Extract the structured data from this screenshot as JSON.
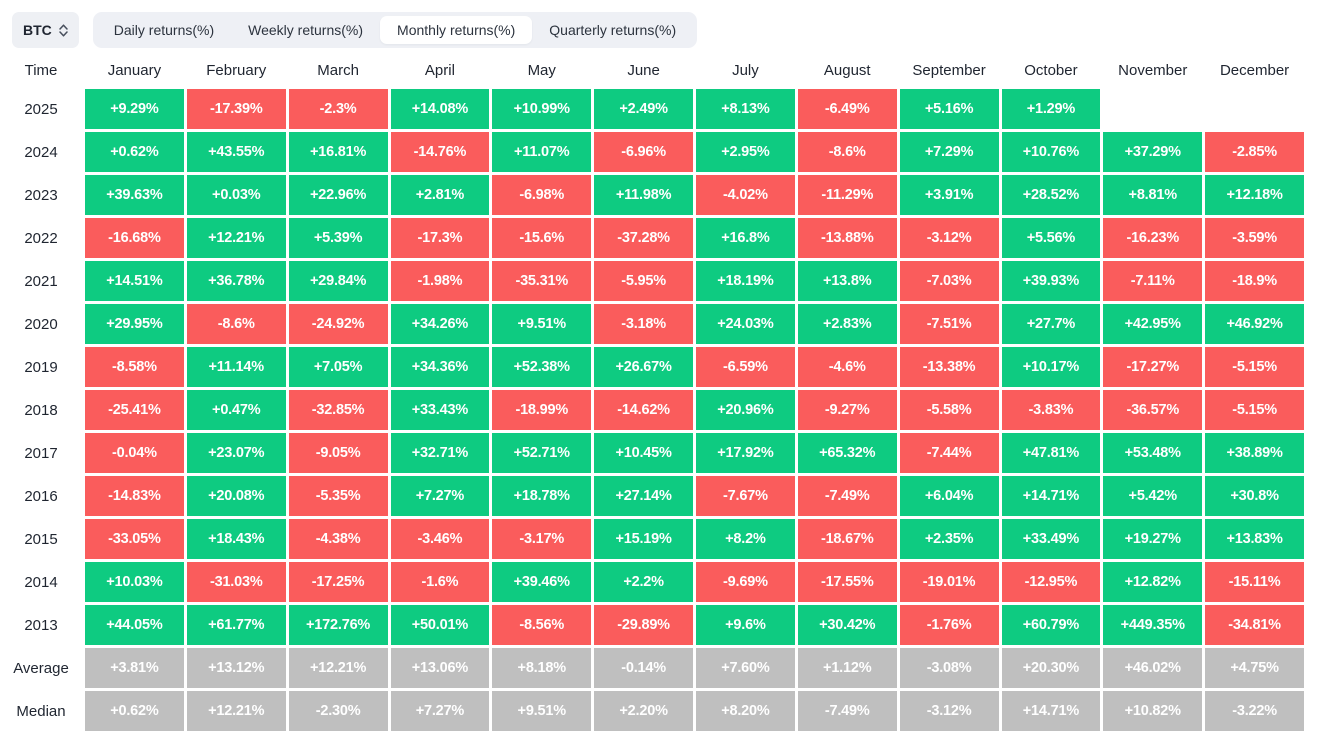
{
  "controls": {
    "symbol": "BTC",
    "symbol_icon": "up-down-chevron-icon",
    "tabs": [
      {
        "label": "Daily returns(%)",
        "selected": false
      },
      {
        "label": "Weekly returns(%)",
        "selected": false
      },
      {
        "label": "Monthly returns(%)",
        "selected": true
      },
      {
        "label": "Quarterly returns(%)",
        "selected": false
      }
    ]
  },
  "colors": {
    "positive": "#0ecb81",
    "negative": "#fa5c5c",
    "summary": "#bfbfbf",
    "tab_bar_bg": "#eef0f5",
    "selected_tab_bg": "#ffffff",
    "header_text": "#1f2530",
    "cell_text": "#ffffff"
  },
  "chart_data": {
    "type": "table",
    "title": "BTC Monthly returns(%)",
    "legend_rule": "green = positive return, red = negative return, gray = Average/Median summary rows, blank = no data yet",
    "columns": [
      "Time",
      "January",
      "February",
      "March",
      "April",
      "May",
      "June",
      "July",
      "August",
      "September",
      "October",
      "November",
      "December"
    ],
    "rows": [
      {
        "label": "2025",
        "summary": false,
        "values": [
          "+9.29%",
          "-17.39%",
          "-2.3%",
          "+14.08%",
          "+10.99%",
          "+2.49%",
          "+8.13%",
          "-6.49%",
          "+5.16%",
          "+1.29%",
          "",
          ""
        ]
      },
      {
        "label": "2024",
        "summary": false,
        "values": [
          "+0.62%",
          "+43.55%",
          "+16.81%",
          "-14.76%",
          "+11.07%",
          "-6.96%",
          "+2.95%",
          "-8.6%",
          "+7.29%",
          "+10.76%",
          "+37.29%",
          "-2.85%"
        ]
      },
      {
        "label": "2023",
        "summary": false,
        "values": [
          "+39.63%",
          "+0.03%",
          "+22.96%",
          "+2.81%",
          "-6.98%",
          "+11.98%",
          "-4.02%",
          "-11.29%",
          "+3.91%",
          "+28.52%",
          "+8.81%",
          "+12.18%"
        ]
      },
      {
        "label": "2022",
        "summary": false,
        "values": [
          "-16.68%",
          "+12.21%",
          "+5.39%",
          "-17.3%",
          "-15.6%",
          "-37.28%",
          "+16.8%",
          "-13.88%",
          "-3.12%",
          "+5.56%",
          "-16.23%",
          "-3.59%"
        ]
      },
      {
        "label": "2021",
        "summary": false,
        "values": [
          "+14.51%",
          "+36.78%",
          "+29.84%",
          "-1.98%",
          "-35.31%",
          "-5.95%",
          "+18.19%",
          "+13.8%",
          "-7.03%",
          "+39.93%",
          "-7.11%",
          "-18.9%"
        ]
      },
      {
        "label": "2020",
        "summary": false,
        "values": [
          "+29.95%",
          "-8.6%",
          "-24.92%",
          "+34.26%",
          "+9.51%",
          "-3.18%",
          "+24.03%",
          "+2.83%",
          "-7.51%",
          "+27.7%",
          "+42.95%",
          "+46.92%"
        ]
      },
      {
        "label": "2019",
        "summary": false,
        "values": [
          "-8.58%",
          "+11.14%",
          "+7.05%",
          "+34.36%",
          "+52.38%",
          "+26.67%",
          "-6.59%",
          "-4.6%",
          "-13.38%",
          "+10.17%",
          "-17.27%",
          "-5.15%"
        ]
      },
      {
        "label": "2018",
        "summary": false,
        "values": [
          "-25.41%",
          "+0.47%",
          "-32.85%",
          "+33.43%",
          "-18.99%",
          "-14.62%",
          "+20.96%",
          "-9.27%",
          "-5.58%",
          "-3.83%",
          "-36.57%",
          "-5.15%"
        ]
      },
      {
        "label": "2017",
        "summary": false,
        "values": [
          "-0.04%",
          "+23.07%",
          "-9.05%",
          "+32.71%",
          "+52.71%",
          "+10.45%",
          "+17.92%",
          "+65.32%",
          "-7.44%",
          "+47.81%",
          "+53.48%",
          "+38.89%"
        ]
      },
      {
        "label": "2016",
        "summary": false,
        "values": [
          "-14.83%",
          "+20.08%",
          "-5.35%",
          "+7.27%",
          "+18.78%",
          "+27.14%",
          "-7.67%",
          "-7.49%",
          "+6.04%",
          "+14.71%",
          "+5.42%",
          "+30.8%"
        ]
      },
      {
        "label": "2015",
        "summary": false,
        "values": [
          "-33.05%",
          "+18.43%",
          "-4.38%",
          "-3.46%",
          "-3.17%",
          "+15.19%",
          "+8.2%",
          "-18.67%",
          "+2.35%",
          "+33.49%",
          "+19.27%",
          "+13.83%"
        ]
      },
      {
        "label": "2014",
        "summary": false,
        "values": [
          "+10.03%",
          "-31.03%",
          "-17.25%",
          "-1.6%",
          "+39.46%",
          "+2.2%",
          "-9.69%",
          "-17.55%",
          "-19.01%",
          "-12.95%",
          "+12.82%",
          "-15.11%"
        ]
      },
      {
        "label": "2013",
        "summary": false,
        "values": [
          "+44.05%",
          "+61.77%",
          "+172.76%",
          "+50.01%",
          "-8.56%",
          "-29.89%",
          "+9.6%",
          "+30.42%",
          "-1.76%",
          "+60.79%",
          "+449.35%",
          "-34.81%"
        ]
      },
      {
        "label": "Average",
        "summary": true,
        "values": [
          "+3.81%",
          "+13.12%",
          "+12.21%",
          "+13.06%",
          "+8.18%",
          "-0.14%",
          "+7.60%",
          "+1.12%",
          "-3.08%",
          "+20.30%",
          "+46.02%",
          "+4.75%"
        ]
      },
      {
        "label": "Median",
        "summary": true,
        "values": [
          "+0.62%",
          "+12.21%",
          "-2.30%",
          "+7.27%",
          "+9.51%",
          "+2.20%",
          "+8.20%",
          "-7.49%",
          "-3.12%",
          "+14.71%",
          "+10.82%",
          "-3.22%"
        ]
      }
    ]
  }
}
